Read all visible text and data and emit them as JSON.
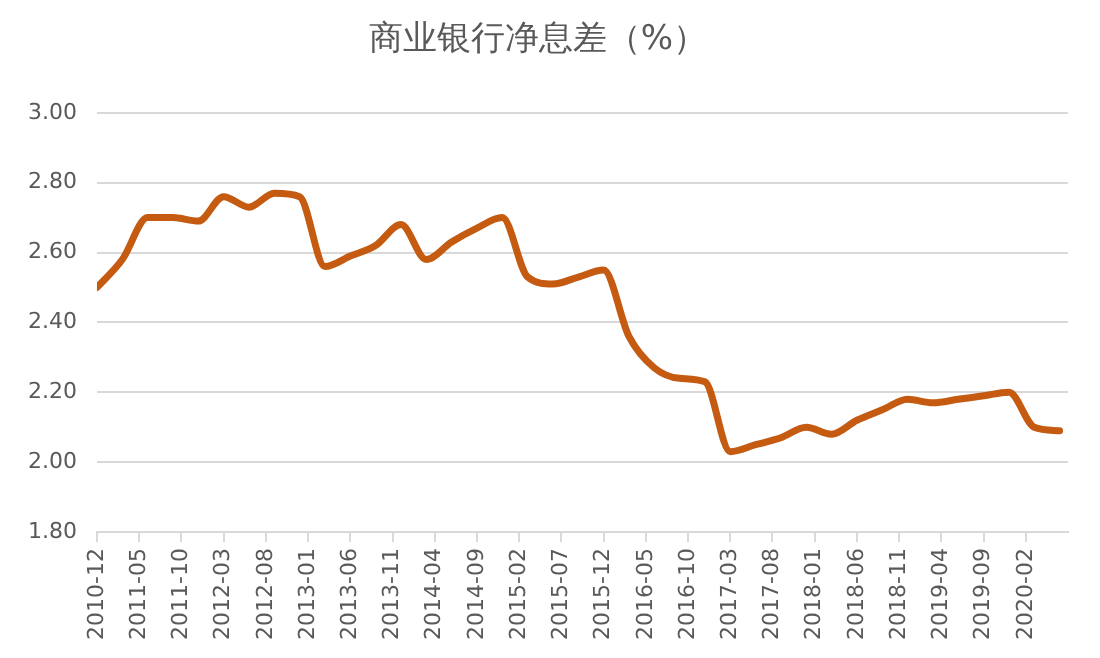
{
  "chart_data": {
    "type": "line",
    "title": "商业银行净息差（%）",
    "x": [
      "2010-12",
      "2011-03",
      "2011-06",
      "2011-09",
      "2011-12",
      "2012-03",
      "2012-06",
      "2012-09",
      "2012-12",
      "2013-03",
      "2013-06",
      "2013-09",
      "2013-12",
      "2014-03",
      "2014-06",
      "2014-09",
      "2014-12",
      "2015-03",
      "2015-06",
      "2015-09",
      "2015-12",
      "2016-03",
      "2016-06",
      "2016-09",
      "2016-12",
      "2017-03",
      "2017-06",
      "2017-09",
      "2017-12",
      "2018-03",
      "2018-06",
      "2018-09",
      "2018-12",
      "2019-03",
      "2019-06",
      "2019-09",
      "2019-12",
      "2020-03",
      "2020-06"
    ],
    "series": [
      {
        "color": "#c55a11",
        "values": [
          2.5,
          2.58,
          2.7,
          2.7,
          2.69,
          2.76,
          2.73,
          2.77,
          2.76,
          2.56,
          2.59,
          2.62,
          2.68,
          2.58,
          2.63,
          2.67,
          2.7,
          2.53,
          2.51,
          2.53,
          2.55,
          2.36,
          2.27,
          2.24,
          2.23,
          2.03,
          2.05,
          2.07,
          2.1,
          2.08,
          2.12,
          2.15,
          2.18,
          2.17,
          2.18,
          2.19,
          2.2,
          2.1,
          2.09
        ]
      }
    ],
    "xlim": [
      "2010-12",
      "2020-07"
    ],
    "xticks": [
      "2010-12",
      "2011-05",
      "2011-10",
      "2012-03",
      "2012-08",
      "2013-01",
      "2013-06",
      "2013-11",
      "2014-04",
      "2014-09",
      "2015-02",
      "2015-07",
      "2015-12",
      "2016-05",
      "2016-10",
      "2017-03",
      "2017-08",
      "2018-01",
      "2018-06",
      "2018-11",
      "2019-04",
      "2019-09",
      "2020-02"
    ],
    "ylim": [
      1.8,
      3.0
    ],
    "yticks": [
      {
        "value": 1.8,
        "label": "1.80"
      },
      {
        "value": 2.0,
        "label": "2.00"
      },
      {
        "value": 2.2,
        "label": "2.20"
      },
      {
        "value": 2.4,
        "label": "2.40"
      },
      {
        "value": 2.6,
        "label": "2.60"
      },
      {
        "value": 2.8,
        "label": "2.80"
      },
      {
        "value": 3.0,
        "label": "3.00"
      }
    ],
    "grid": "y",
    "legend": false,
    "marker": "none",
    "line_style": "solid"
  }
}
